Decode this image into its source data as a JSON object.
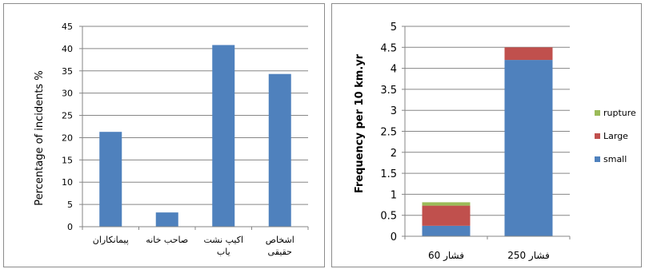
{
  "chart_data": [
    {
      "type": "bar",
      "ylabel": "Percentage of incidents %",
      "ylim": [
        0,
        45
      ],
      "yticks": [
        0,
        5,
        10,
        15,
        20,
        25,
        30,
        35,
        40,
        45
      ],
      "categories": [
        "پیمانکاران",
        "صاحب خانه",
        "اکیپ نشت یاب",
        "اشخاص حقیقی"
      ],
      "category_lines": [
        [
          "پیمانکاران"
        ],
        [
          "صاحب خانه"
        ],
        [
          "اکیپ نشت",
          "یاب"
        ],
        [
          "اشخاص",
          "حقیقی"
        ]
      ],
      "values": [
        21.3,
        3.2,
        40.8,
        34.3
      ],
      "grid": true,
      "colors": {
        "bar": "#4f81bd"
      }
    },
    {
      "type": "bar",
      "stacked": true,
      "ylabel": "Frequency per 10 km.yr",
      "ylim": [
        0,
        5
      ],
      "yticks": [
        "0",
        "0.5",
        "1",
        "1.5",
        "2",
        "2.5",
        "3",
        "3.5",
        "4",
        "4.5",
        "5"
      ],
      "categories": [
        "فشار 60",
        "فشار 250"
      ],
      "series": [
        {
          "name": "small",
          "values": [
            0.25,
            4.2
          ],
          "color": "#4f81bd"
        },
        {
          "name": "Large",
          "values": [
            0.48,
            0.3
          ],
          "color": "#c0504d"
        },
        {
          "name": "rupture",
          "values": [
            0.08,
            0.0
          ],
          "color": "#9bbb59"
        }
      ],
      "legend": "right",
      "grid": true
    }
  ]
}
